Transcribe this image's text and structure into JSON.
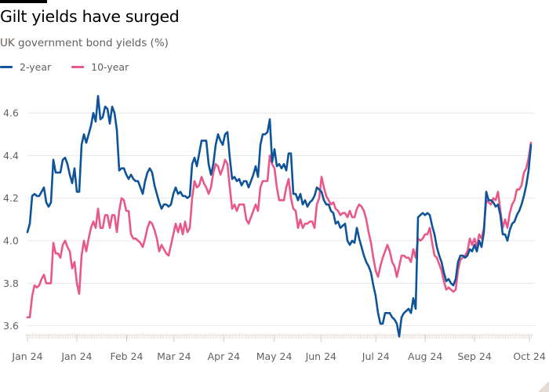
{
  "header": {
    "title": "Gilt yields have surged",
    "subtitle": "UK government bond yields (%)"
  },
  "legend": [
    {
      "label": "2-year",
      "color": "#0f5499"
    },
    {
      "label": "10-year",
      "color": "#e9588a"
    }
  ],
  "chart_data": {
    "type": "line",
    "title": "Gilt yields have surged",
    "subtitle": "UK government bond yields (%)",
    "xlabel": "",
    "ylabel": "UK government bond yields (%)",
    "ylim": [
      3.55,
      4.7
    ],
    "yticks": [
      3.6,
      3.8,
      4.0,
      4.2,
      4.4,
      4.6
    ],
    "ytick_labels": [
      "3.6",
      "3.8",
      "4.0",
      "4.2",
      "4.4",
      "4.6"
    ],
    "xtick_labels": [
      "Jan 24",
      "Jan 24",
      "Feb 24",
      "Mar 24",
      "Apr 24",
      "May 24",
      "Jun 24",
      "Jul 24",
      "Aug 24",
      "Sep 24",
      "Oct 24"
    ],
    "xtick_positions": [
      0.0,
      0.098,
      0.197,
      0.291,
      0.39,
      0.49,
      0.583,
      0.692,
      0.79,
      0.888,
      0.997
    ],
    "grid": true,
    "legend_position": "top-left",
    "series": [
      {
        "name": "2-year",
        "color": "#0f5499",
        "values": [
          4.04,
          4.08,
          4.21,
          4.22,
          4.21,
          4.21,
          4.23,
          4.25,
          4.18,
          4.16,
          4.18,
          4.38,
          4.32,
          4.32,
          4.32,
          4.38,
          4.39,
          4.36,
          4.31,
          4.27,
          4.34,
          4.23,
          4.23,
          4.45,
          4.5,
          4.46,
          4.5,
          4.54,
          4.6,
          4.56,
          4.68,
          4.57,
          4.58,
          4.63,
          4.62,
          4.55,
          4.63,
          4.6,
          4.52,
          4.33,
          4.34,
          4.34,
          4.31,
          4.29,
          4.31,
          4.29,
          4.28,
          4.28,
          4.25,
          4.22,
          4.28,
          4.32,
          4.34,
          4.32,
          4.26,
          4.22,
          4.18,
          4.15,
          4.17,
          4.17,
          4.16,
          4.17,
          4.22,
          4.25,
          4.22,
          4.23,
          4.21,
          4.21,
          4.2,
          4.21,
          4.36,
          4.39,
          4.35,
          4.41,
          4.47,
          4.47,
          4.47,
          4.36,
          4.31,
          4.36,
          4.45,
          4.5,
          4.47,
          4.45,
          4.5,
          4.51,
          4.39,
          4.29,
          4.3,
          4.28,
          4.29,
          4.26,
          4.28,
          4.28,
          4.25,
          4.28,
          4.31,
          4.35,
          4.3,
          4.45,
          4.5,
          4.5,
          4.51,
          4.57,
          4.37,
          4.43,
          4.35,
          4.36,
          4.34,
          4.36,
          4.33,
          4.41,
          4.41,
          4.22,
          4.22,
          4.19,
          4.22,
          4.17,
          4.19,
          4.16,
          4.18,
          4.19,
          4.21,
          4.25,
          4.24,
          4.23,
          4.19,
          4.17,
          4.17,
          4.14,
          4.13,
          4.08,
          4.09,
          4.06,
          4.07,
          4.08,
          4.0,
          3.98,
          4.0,
          3.99,
          4.06,
          4.01,
          3.97,
          3.93,
          3.9,
          3.88,
          3.85,
          3.79,
          3.74,
          3.66,
          3.61,
          3.61,
          3.66,
          3.66,
          3.66,
          3.64,
          3.63,
          3.61,
          3.55,
          3.64,
          3.66,
          3.67,
          3.68,
          3.66,
          3.73,
          3.68,
          4.11,
          4.12,
          4.13,
          4.12,
          4.13,
          4.12,
          4.07,
          4.03,
          3.97,
          3.93,
          3.9,
          3.85,
          3.81,
          3.82,
          3.8,
          3.79,
          3.82,
          3.9,
          3.93,
          3.93,
          3.92,
          3.93,
          3.96,
          3.95,
          3.98,
          3.95,
          4.0,
          3.97,
          4.04,
          4.23,
          4.19,
          4.19,
          4.18,
          4.16,
          4.17,
          4.12,
          4.03,
          4.03,
          4.0,
          4.05,
          4.08,
          4.09,
          4.12,
          4.14,
          4.17,
          4.21,
          4.26,
          4.33,
          4.45
        ]
      },
      {
        "name": "10-year",
        "color": "#e9588a",
        "values": [
          3.64,
          3.64,
          3.74,
          3.79,
          3.78,
          3.79,
          3.82,
          3.84,
          3.8,
          3.8,
          3.8,
          3.99,
          3.94,
          3.94,
          3.92,
          3.98,
          4.0,
          3.97,
          3.95,
          3.87,
          3.9,
          3.8,
          3.75,
          3.93,
          4.0,
          3.95,
          4.01,
          4.06,
          4.09,
          4.06,
          4.15,
          4.06,
          4.06,
          4.12,
          4.12,
          4.06,
          4.12,
          4.12,
          4.04,
          4.14,
          4.2,
          4.19,
          4.14,
          4.14,
          4.03,
          4.01,
          4.01,
          4.0,
          3.99,
          3.97,
          4.01,
          4.06,
          4.09,
          4.08,
          4.05,
          4.01,
          3.95,
          3.98,
          3.96,
          3.94,
          3.93,
          3.98,
          4.03,
          4.08,
          4.04,
          4.08,
          4.03,
          4.09,
          4.04,
          4.06,
          4.2,
          4.28,
          4.25,
          4.26,
          4.3,
          4.27,
          4.25,
          4.22,
          4.25,
          4.32,
          4.36,
          4.35,
          4.31,
          4.34,
          4.38,
          4.36,
          4.25,
          4.15,
          4.17,
          4.14,
          4.17,
          4.17,
          4.17,
          4.1,
          4.08,
          4.11,
          4.14,
          4.17,
          4.14,
          4.25,
          4.28,
          4.28,
          4.28,
          4.4,
          4.36,
          4.34,
          4.25,
          4.19,
          4.19,
          4.19,
          4.25,
          4.29,
          4.2,
          4.15,
          4.14,
          4.06,
          4.1,
          4.06,
          4.08,
          4.08,
          4.09,
          4.09,
          4.06,
          4.17,
          4.2,
          4.3,
          4.25,
          4.21,
          4.19,
          4.17,
          4.18,
          4.15,
          4.14,
          4.12,
          4.13,
          4.13,
          4.11,
          4.14,
          4.11,
          4.11,
          4.15,
          4.17,
          4.16,
          4.14,
          4.1,
          4.04,
          3.99,
          3.92,
          3.86,
          3.83,
          3.88,
          3.92,
          3.95,
          3.98,
          3.95,
          3.9,
          3.88,
          3.83,
          3.88,
          3.93,
          3.93,
          3.92,
          3.92,
          3.9,
          3.96,
          3.92,
          4.01,
          4.0,
          4.01,
          4.03,
          4.03,
          4.06,
          3.99,
          3.93,
          3.92,
          3.89,
          3.86,
          3.81,
          3.77,
          3.78,
          3.77,
          3.76,
          3.77,
          3.86,
          3.91,
          3.92,
          3.93,
          3.95,
          4.01,
          3.98,
          4.01,
          3.97,
          4.03,
          4.01,
          4.06,
          4.19,
          4.18,
          4.17,
          4.2,
          4.19,
          4.23,
          4.14,
          4.06,
          4.1,
          4.06,
          4.13,
          4.17,
          4.19,
          4.24,
          4.24,
          4.26,
          4.32,
          4.34,
          4.39,
          4.46
        ]
      }
    ]
  }
}
